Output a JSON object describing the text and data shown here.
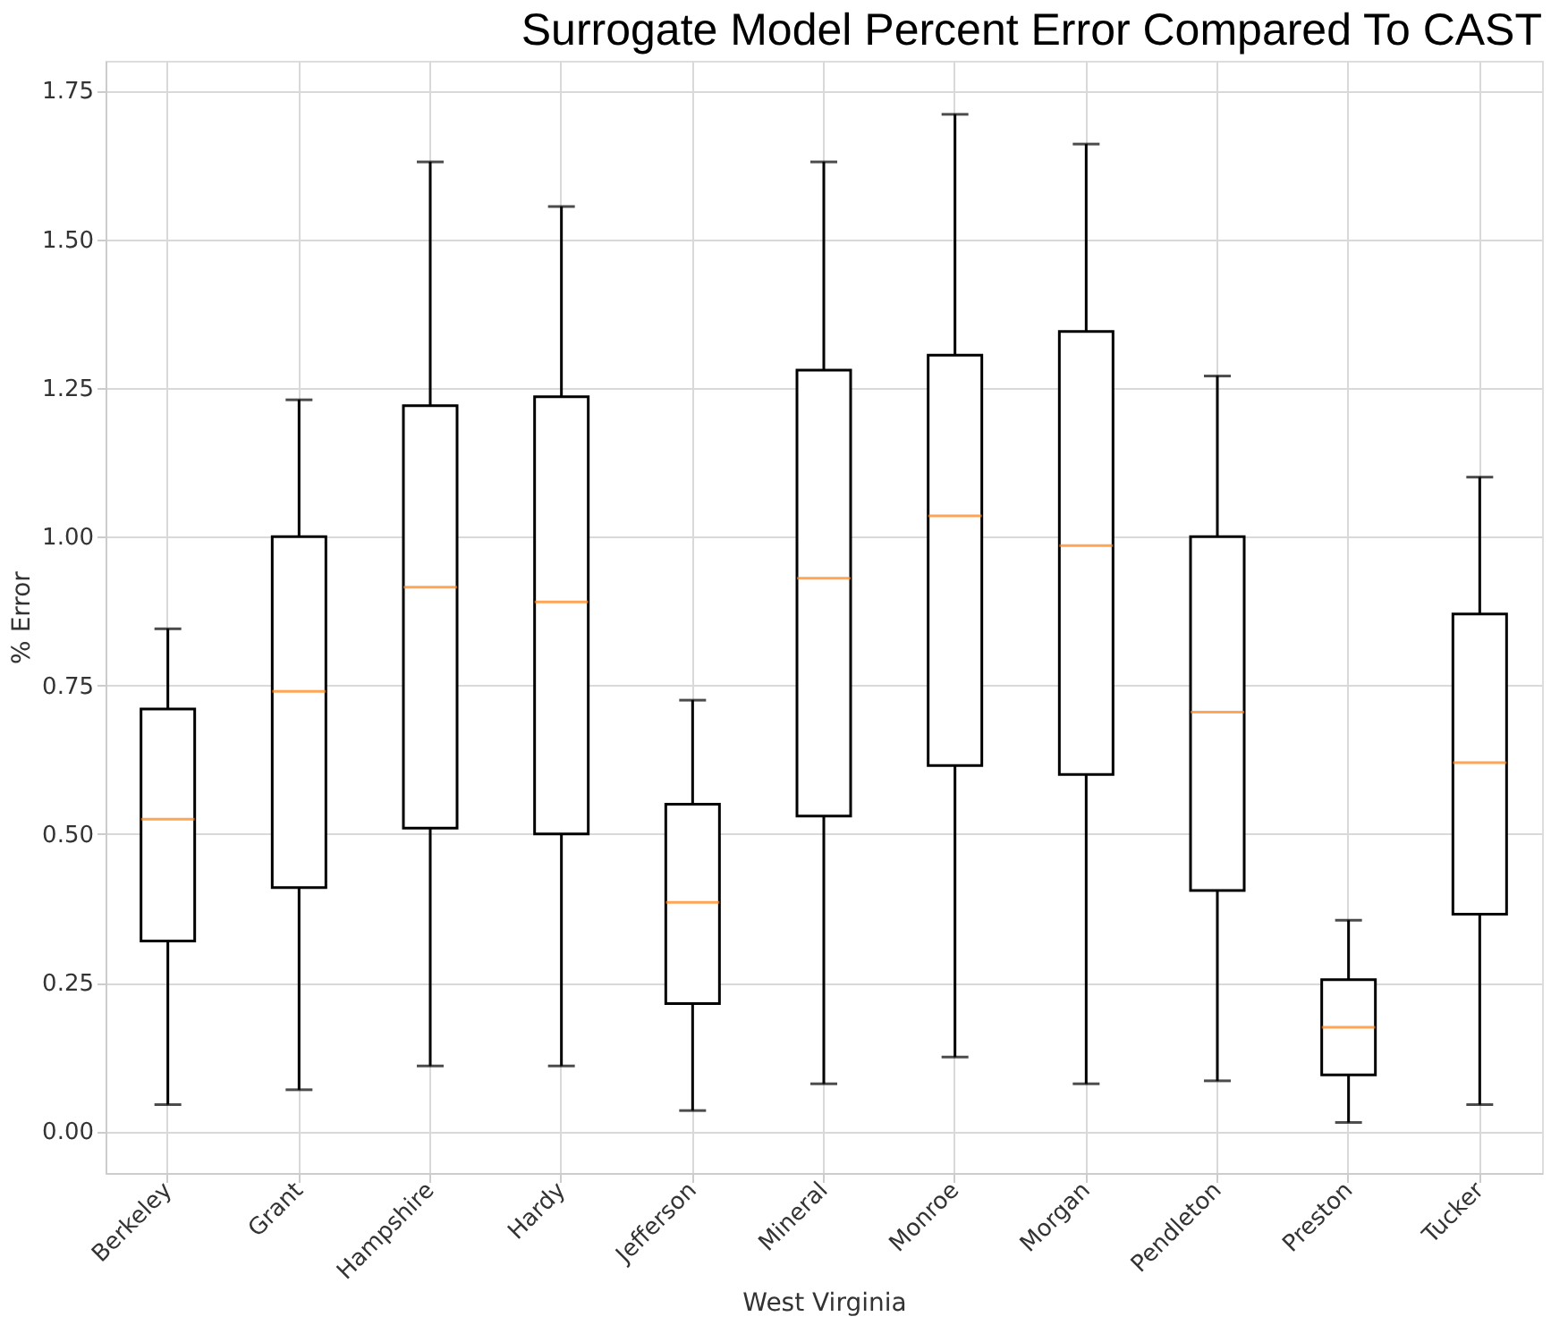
{
  "chart_data": {
    "type": "box",
    "title": "Surrogate Model Percent Error Compared To CAST",
    "xlabel": "West Virginia",
    "ylabel": "% Error",
    "categories": [
      "Berkeley",
      "Grant",
      "Hampshire",
      "Hardy",
      "Jefferson",
      "Mineral",
      "Monroe",
      "Morgan",
      "Pendleton",
      "Preston",
      "Tucker"
    ],
    "boxes": [
      {
        "low": 0.045,
        "q1": 0.32,
        "median": 0.525,
        "q3": 0.71,
        "high": 0.845
      },
      {
        "low": 0.07,
        "q1": 0.41,
        "median": 0.74,
        "q3": 1.0,
        "high": 1.23
      },
      {
        "low": 0.11,
        "q1": 0.51,
        "median": 0.915,
        "q3": 1.22,
        "high": 1.63
      },
      {
        "low": 0.11,
        "q1": 0.5,
        "median": 0.89,
        "q3": 1.235,
        "high": 1.555
      },
      {
        "low": 0.035,
        "q1": 0.215,
        "median": 0.385,
        "q3": 0.55,
        "high": 0.725
      },
      {
        "low": 0.08,
        "q1": 0.53,
        "median": 0.93,
        "q3": 1.28,
        "high": 1.63
      },
      {
        "low": 0.125,
        "q1": 0.615,
        "median": 1.035,
        "q3": 1.305,
        "high": 1.71
      },
      {
        "low": 0.08,
        "q1": 0.6,
        "median": 0.985,
        "q3": 1.345,
        "high": 1.66
      },
      {
        "low": 0.085,
        "q1": 0.405,
        "median": 0.705,
        "q3": 1.0,
        "high": 1.27
      },
      {
        "low": 0.015,
        "q1": 0.095,
        "median": 0.175,
        "q3": 0.255,
        "high": 0.355
      },
      {
        "low": 0.045,
        "q1": 0.365,
        "median": 0.62,
        "q3": 0.87,
        "high": 1.1
      }
    ],
    "color": "#000000",
    "ylim": [
      -0.07,
      1.8
    ],
    "yticks": [
      {
        "value": 0,
        "label": "0.00"
      },
      {
        "value": 0.25,
        "label": "0.25"
      },
      {
        "value": 0.5,
        "label": "0.50"
      },
      {
        "value": 0.75,
        "label": "0.75"
      },
      {
        "value": 1,
        "label": "1.00"
      },
      {
        "value": 1.25,
        "label": "1.25"
      },
      {
        "value": 1.5,
        "label": "1.50"
      },
      {
        "value": 1.75,
        "label": "1.75"
      }
    ],
    "grid": true
  }
}
